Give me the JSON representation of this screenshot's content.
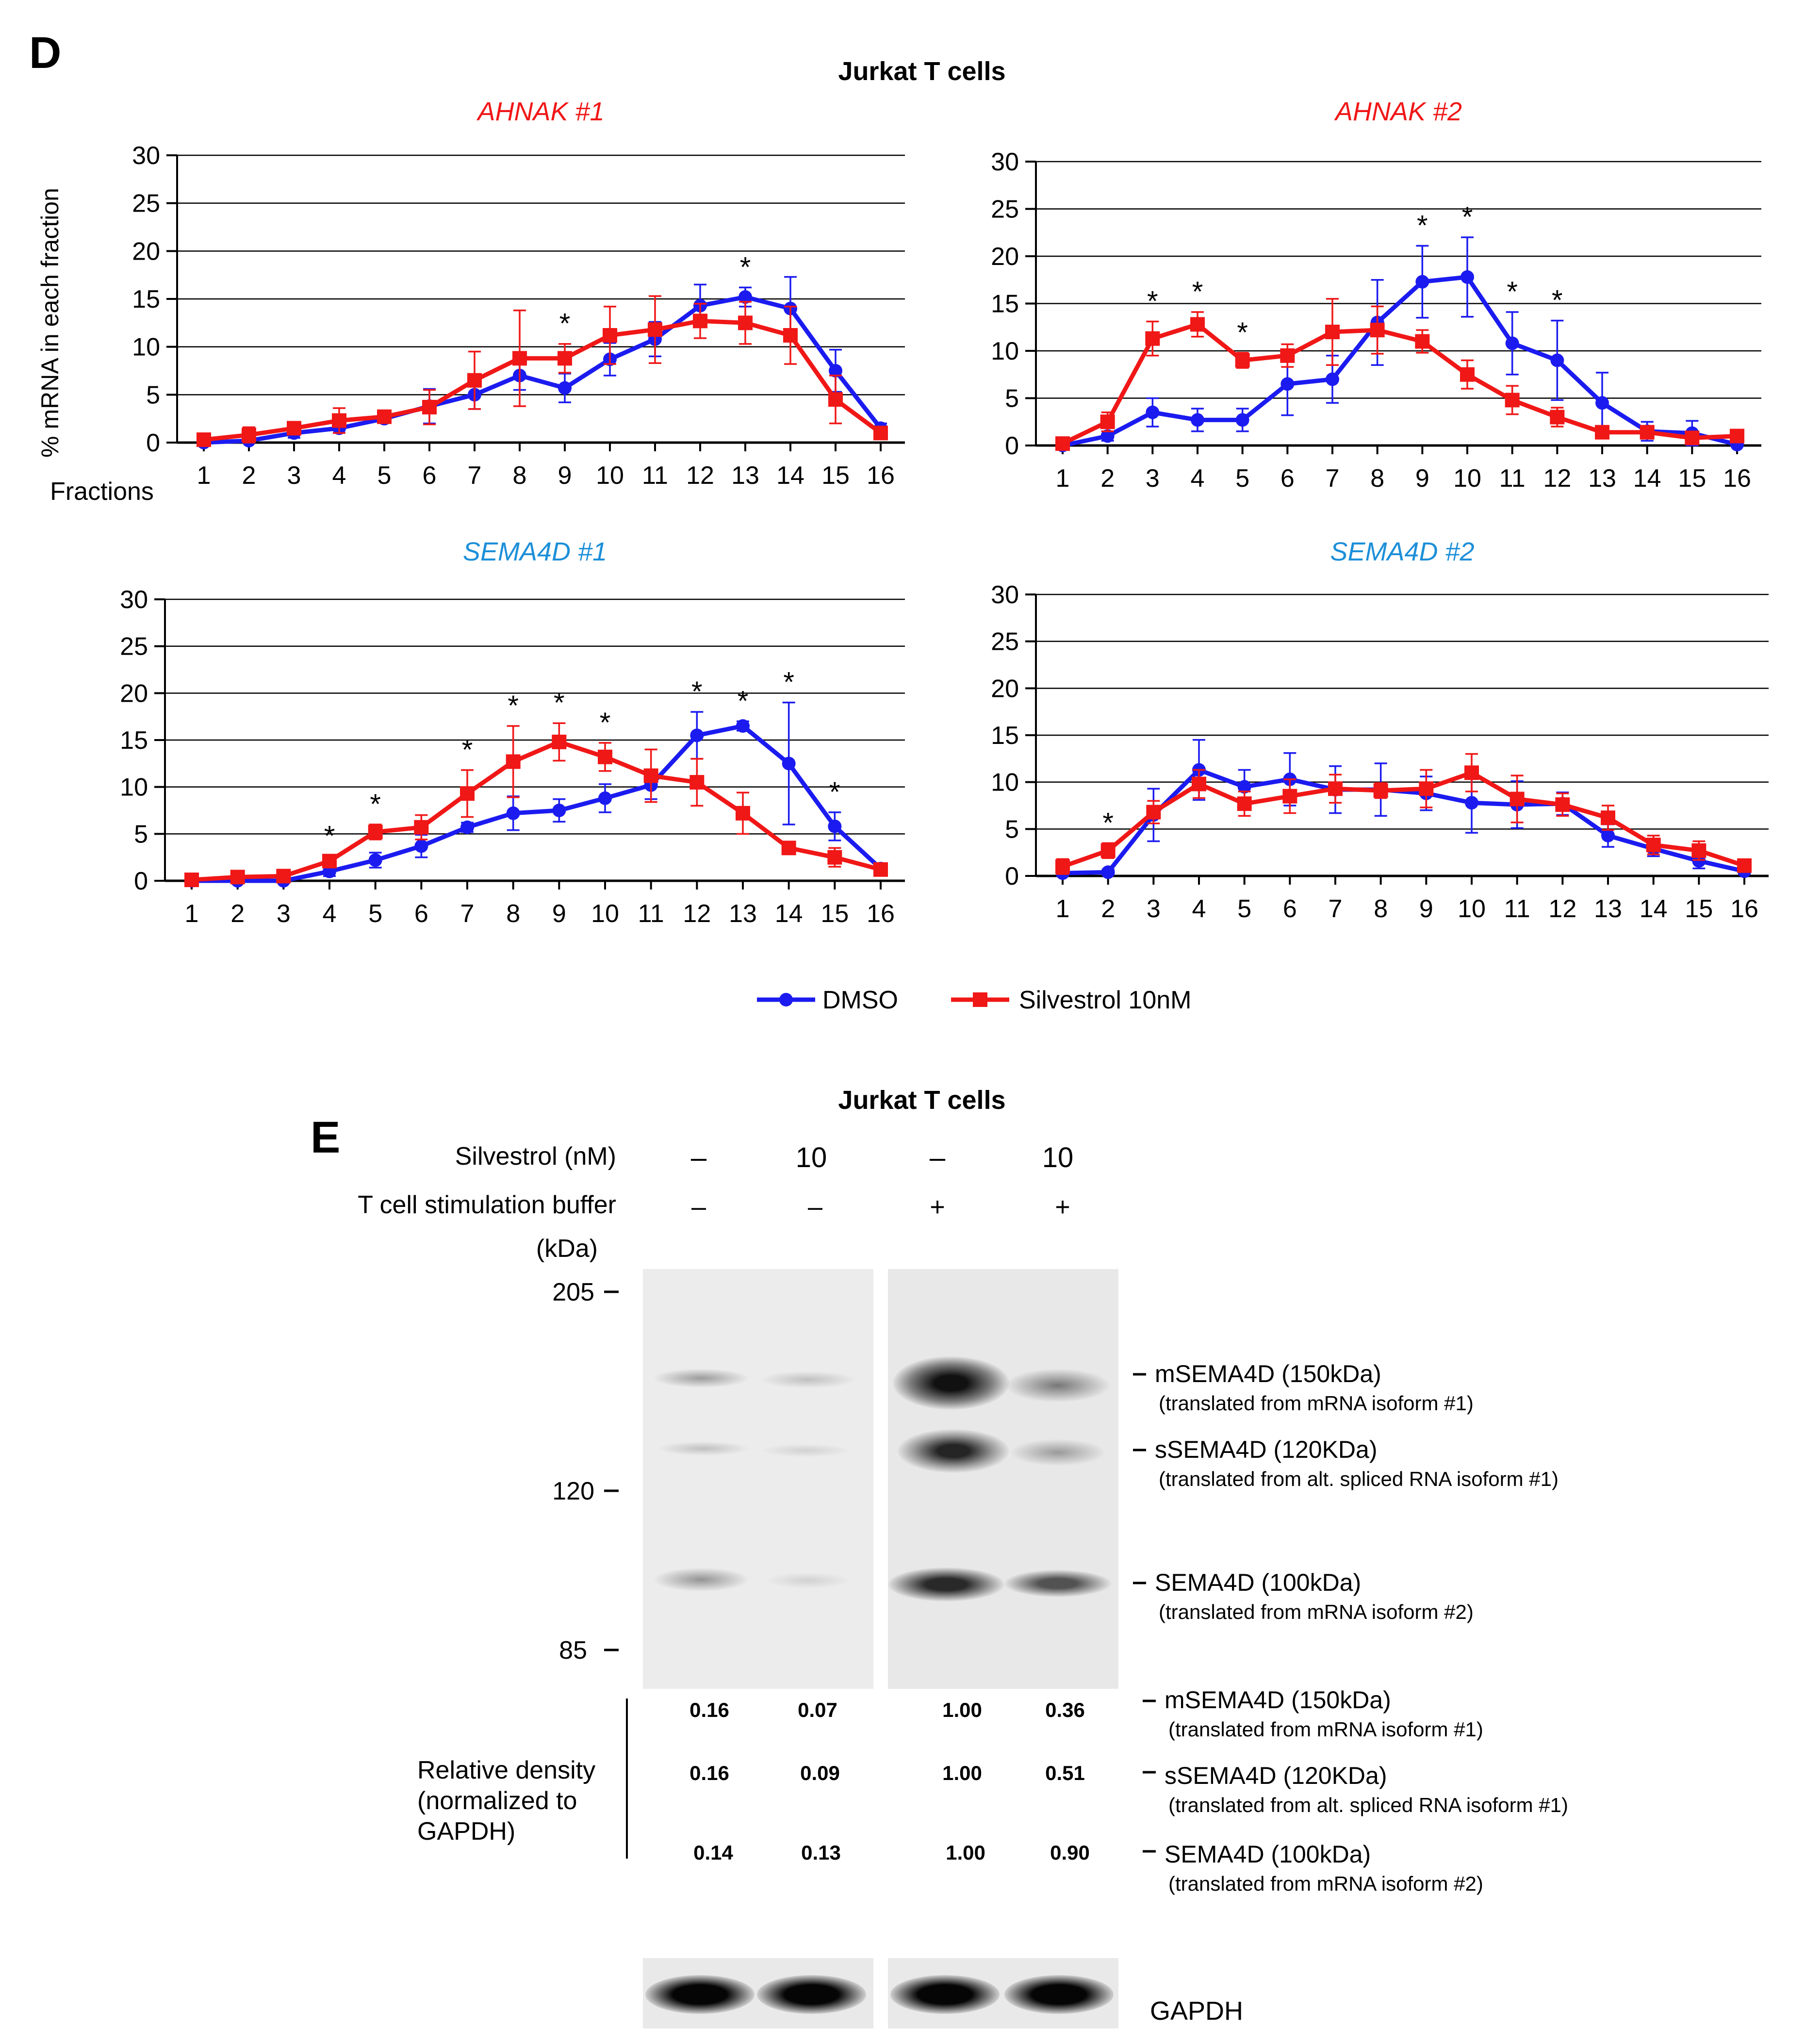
{
  "panel_d": {
    "letter": "D",
    "figure_title": "Jurkat T cells",
    "y_axis_label": "% mRNA in each fraction",
    "x_axis_label": "Fractions"
  },
  "legend": {
    "dmso": "DMSO",
    "silvestrol": "Silvestrol 10nM"
  },
  "colors": {
    "dmso": "#1b1bf0",
    "silvestrol": "#f01717",
    "ahnak_title": "#f01717",
    "sema4d_title": "#1c8fd8"
  },
  "chart_data": [
    {
      "type": "line",
      "title": "AHNAK #1",
      "x": [
        1,
        2,
        3,
        4,
        5,
        6,
        7,
        8,
        9,
        10,
        11,
        12,
        13,
        14,
        15,
        16
      ],
      "ylim": [
        0,
        30
      ],
      "yticks": [
        0,
        5,
        10,
        15,
        20,
        25,
        30
      ],
      "series": [
        {
          "name": "DMSO",
          "values": [
            0,
            0.2,
            1,
            1.5,
            2.5,
            3.8,
            5,
            7,
            5.7,
            8.7,
            10.8,
            14.3,
            15.2,
            14,
            7.5,
            1.5
          ],
          "errors": [
            0.3,
            0.3,
            0.5,
            0.5,
            0.4,
            1.8,
            1.5,
            1.5,
            1.5,
            1.7,
            1.8,
            2.2,
            1,
            3.3,
            2.2,
            0.5
          ]
        },
        {
          "name": "Silvestrol 10nM",
          "values": [
            0.3,
            0.8,
            1.5,
            2.3,
            2.7,
            3.7,
            6.5,
            8.8,
            8.8,
            11.2,
            11.8,
            12.7,
            12.5,
            11.2,
            4.5,
            1
          ],
          "errors": [
            0.4,
            0.8,
            0.4,
            1.3,
            0.4,
            1.8,
            3,
            5,
            1.5,
            3,
            3.5,
            1.8,
            2.2,
            3,
            2.5,
            0.5
          ]
        }
      ],
      "significance": [
        9,
        13
      ]
    },
    {
      "type": "line",
      "title": "AHNAK #2",
      "x": [
        1,
        2,
        3,
        4,
        5,
        6,
        7,
        8,
        9,
        10,
        11,
        12,
        13,
        14,
        15,
        16
      ],
      "ylim": [
        0,
        30
      ],
      "yticks": [
        0,
        5,
        10,
        15,
        20,
        25,
        30
      ],
      "series": [
        {
          "name": "DMSO",
          "values": [
            0,
            1,
            3.5,
            2.7,
            2.7,
            6.5,
            7,
            13,
            17.3,
            17.8,
            10.8,
            9,
            4.5,
            1.5,
            1.3,
            0.1
          ],
          "errors": [
            0.2,
            0.5,
            1.5,
            1.2,
            1.2,
            3.3,
            2.5,
            4.5,
            3.8,
            4.2,
            3.3,
            4.2,
            3.2,
            1,
            1.3,
            0.2
          ]
        },
        {
          "name": "Silvestrol 10nM",
          "values": [
            0.2,
            2.5,
            11.3,
            12.8,
            9,
            9.5,
            12,
            12.2,
            11,
            7.5,
            4.8,
            3,
            1.4,
            1.4,
            0.8,
            1
          ],
          "errors": [
            0.3,
            1,
            1.8,
            1.3,
            0.8,
            1.2,
            3.5,
            2.5,
            1.2,
            1.5,
            1.5,
            1,
            0.3,
            0.3,
            0.4,
            0.4
          ]
        }
      ],
      "significance": [
        3,
        4,
        5,
        9,
        10,
        11,
        12
      ]
    },
    {
      "type": "line",
      "title": "SEMA4D #1",
      "x": [
        1,
        2,
        3,
        4,
        5,
        6,
        7,
        8,
        9,
        10,
        11,
        12,
        13,
        14,
        15,
        16
      ],
      "ylim": [
        0,
        30
      ],
      "yticks": [
        0,
        5,
        10,
        15,
        20,
        25,
        30
      ],
      "series": [
        {
          "name": "DMSO",
          "values": [
            0,
            0,
            0,
            1,
            2.2,
            3.7,
            5.7,
            7.2,
            7.5,
            8.8,
            10.2,
            15.5,
            16.5,
            12.5,
            5.8,
            1.3
          ],
          "errors": [
            0.2,
            0.2,
            0.2,
            0.5,
            0.8,
            1.2,
            0.5,
            1.8,
            1.2,
            1.5,
            1.5,
            2.5,
            0.5,
            6.5,
            1.5,
            0.5
          ]
        },
        {
          "name": "Silvestrol 10nM",
          "values": [
            0.1,
            0.4,
            0.5,
            2.1,
            5.2,
            5.7,
            9.3,
            12.7,
            14.8,
            13.2,
            11.2,
            10.5,
            7.2,
            3.5,
            2.5,
            1.2
          ],
          "errors": [
            0.2,
            0.3,
            0.3,
            0.5,
            0.8,
            1.3,
            2.5,
            3.8,
            2,
            1.5,
            2.8,
            2.5,
            2.2,
            0.5,
            1,
            0.5
          ]
        }
      ],
      "significance": [
        4,
        5,
        7,
        8,
        9,
        10,
        12,
        13,
        14,
        15
      ]
    },
    {
      "type": "line",
      "title": "SEMA4D #2",
      "x": [
        1,
        2,
        3,
        4,
        5,
        6,
        7,
        8,
        9,
        10,
        11,
        12,
        13,
        14,
        15,
        16
      ],
      "ylim": [
        0,
        30
      ],
      "yticks": [
        0,
        5,
        10,
        15,
        20,
        25,
        30
      ],
      "series": [
        {
          "name": "DMSO",
          "values": [
            0.3,
            0.4,
            6.5,
            11.3,
            9.5,
            10.3,
            9.2,
            9.2,
            8.8,
            7.8,
            7.6,
            7.7,
            4.3,
            2.9,
            1.6,
            0.5
          ],
          "errors": [
            0.3,
            0.3,
            2.8,
            3.2,
            1.8,
            2.8,
            2.5,
            2.8,
            1.8,
            3.2,
            2.5,
            1.2,
            1.2,
            0.8,
            0.8,
            0.3
          ]
        },
        {
          "name": "Silvestrol 10nM",
          "values": [
            1,
            2.7,
            6.8,
            9.8,
            7.7,
            8.5,
            9.3,
            9.1,
            9.3,
            11,
            8.2,
            7.6,
            6.2,
            3.3,
            2.7,
            1.1
          ],
          "errors": [
            0.8,
            0.8,
            1.2,
            1.5,
            1.3,
            1.8,
            1.5,
            0.8,
            2,
            2,
            2.5,
            1.2,
            1.3,
            1,
            1,
            0.5
          ]
        }
      ],
      "significance": [
        2
      ]
    }
  ],
  "panel_e": {
    "letter": "E",
    "title": "Jurkat T cells",
    "row_silvestrol_label": "Silvestrol (nM)",
    "row_stim_label": "T cell stimulation buffer",
    "kda_label": "(kDa)",
    "silvestrol_values": [
      "–",
      "10",
      "–",
      "10"
    ],
    "stim_values": [
      "–",
      "–",
      "+",
      "+"
    ],
    "markers": [
      "205",
      "120",
      "85"
    ],
    "band_labels": [
      {
        "name": "mSEMA4D (150kDa)",
        "sub": "(translated from mRNA isoform #1)"
      },
      {
        "name": "sSEMA4D (120KDa)",
        "sub": "(translated from alt. spliced RNA isoform #1)"
      },
      {
        "name": "SEMA4D (100kDa)",
        "sub": "(translated from mRNA isoform #2)"
      }
    ],
    "density_label_lines": [
      "Relative density",
      "(normalized to",
      "GAPDH)"
    ],
    "density_rows": [
      {
        "values": [
          "0.16",
          "0.07",
          "1.00",
          "0.36"
        ],
        "name": "mSEMA4D (150kDa)",
        "sub": "(translated from mRNA isoform #1)"
      },
      {
        "values": [
          "0.16",
          "0.09",
          "1.00",
          "0.51"
        ],
        "name": "sSEMA4D (120KDa)",
        "sub": "(translated from alt. spliced RNA isoform #1)"
      },
      {
        "values": [
          "0.14",
          "0.13",
          "1.00",
          "0.90"
        ],
        "name": "SEMA4D (100kDa)",
        "sub": "(translated from mRNA isoform #2)"
      }
    ],
    "gapdh_label": "GAPDH"
  }
}
